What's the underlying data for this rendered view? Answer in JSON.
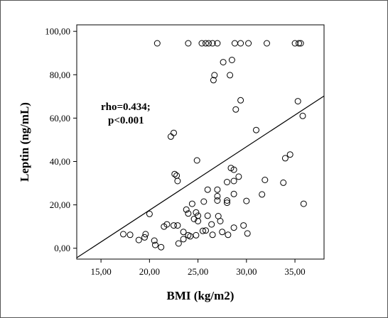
{
  "chart_data": {
    "type": "scatter",
    "title": "",
    "xlabel": "BMI (kg/m2)",
    "ylabel": "Leptin (ng/mL)",
    "xlim": [
      12.5,
      38
    ],
    "ylim": [
      -5,
      103
    ],
    "x_ticks": [
      15,
      20,
      25,
      30,
      35
    ],
    "x_tick_labels": [
      "15,00",
      "20,00",
      "25,00",
      "30,00",
      "35,00"
    ],
    "y_ticks": [
      0,
      20,
      40,
      60,
      80,
      100
    ],
    "y_tick_labels": [
      "0,00",
      "20,00",
      "40,00",
      "60,00",
      "80,00",
      "100,00"
    ],
    "grid": false,
    "annotation": [
      "rho=0.434;",
      "p<0.001"
    ],
    "fit_line": {
      "x": [
        12.5,
        38
      ],
      "y": [
        -4.4,
        70.2
      ]
    },
    "points": [
      {
        "x": 17.3,
        "y": 6.5
      },
      {
        "x": 18.0,
        "y": 6.2
      },
      {
        "x": 18.9,
        "y": 3.8
      },
      {
        "x": 19.5,
        "y": 5.0
      },
      {
        "x": 19.6,
        "y": 6.5
      },
      {
        "x": 20.0,
        "y": 15.8
      },
      {
        "x": 20.5,
        "y": 3.5
      },
      {
        "x": 20.6,
        "y": 1.5
      },
      {
        "x": 21.2,
        "y": 0.5
      },
      {
        "x": 21.5,
        "y": 10.0
      },
      {
        "x": 21.8,
        "y": 11.0
      },
      {
        "x": 22.2,
        "y": 51.5
      },
      {
        "x": 22.5,
        "y": 53.2
      },
      {
        "x": 22.5,
        "y": 10.5
      },
      {
        "x": 22.6,
        "y": 34.2
      },
      {
        "x": 22.8,
        "y": 33.5
      },
      {
        "x": 22.9,
        "y": 31.0
      },
      {
        "x": 22.9,
        "y": 10.5
      },
      {
        "x": 23.0,
        "y": 2.2
      },
      {
        "x": 23.5,
        "y": 7.5
      },
      {
        "x": 23.5,
        "y": 4.2
      },
      {
        "x": 23.8,
        "y": 17.8
      },
      {
        "x": 24.0,
        "y": 16.0
      },
      {
        "x": 24.0,
        "y": 6.0
      },
      {
        "x": 24.2,
        "y": 5.5
      },
      {
        "x": 24.4,
        "y": 20.5
      },
      {
        "x": 24.6,
        "y": 13.5
      },
      {
        "x": 24.8,
        "y": 16.5
      },
      {
        "x": 24.8,
        "y": 6.0
      },
      {
        "x": 24.9,
        "y": 40.5
      },
      {
        "x": 25.0,
        "y": 15.0
      },
      {
        "x": 25.0,
        "y": 12.5
      },
      {
        "x": 25.5,
        "y": 8.0
      },
      {
        "x": 25.6,
        "y": 21.5
      },
      {
        "x": 25.8,
        "y": 8.2
      },
      {
        "x": 26.0,
        "y": 27.0
      },
      {
        "x": 26.0,
        "y": 15.0
      },
      {
        "x": 26.4,
        "y": 11.0
      },
      {
        "x": 26.5,
        "y": 6.2
      },
      {
        "x": 26.6,
        "y": 77.5
      },
      {
        "x": 26.7,
        "y": 79.8
      },
      {
        "x": 27.0,
        "y": 27.0
      },
      {
        "x": 27.0,
        "y": 24.0
      },
      {
        "x": 27.0,
        "y": 22.0
      },
      {
        "x": 27.1,
        "y": 14.8
      },
      {
        "x": 27.3,
        "y": 12.5
      },
      {
        "x": 27.5,
        "y": 7.5
      },
      {
        "x": 27.6,
        "y": 85.8
      },
      {
        "x": 28.0,
        "y": 30.5
      },
      {
        "x": 28.0,
        "y": 22.0
      },
      {
        "x": 28.0,
        "y": 21.0
      },
      {
        "x": 28.1,
        "y": 6.2
      },
      {
        "x": 28.3,
        "y": 79.8
      },
      {
        "x": 28.4,
        "y": 37.0
      },
      {
        "x": 28.5,
        "y": 86.8
      },
      {
        "x": 28.7,
        "y": 36.2
      },
      {
        "x": 28.7,
        "y": 31.0
      },
      {
        "x": 28.7,
        "y": 25.0
      },
      {
        "x": 28.7,
        "y": 9.5
      },
      {
        "x": 28.9,
        "y": 64.0
      },
      {
        "x": 29.2,
        "y": 33.0
      },
      {
        "x": 29.4,
        "y": 68.2
      },
      {
        "x": 29.7,
        "y": 10.5
      },
      {
        "x": 30.0,
        "y": 21.8
      },
      {
        "x": 30.1,
        "y": 6.8
      },
      {
        "x": 31.0,
        "y": 54.5
      },
      {
        "x": 31.6,
        "y": 24.8
      },
      {
        "x": 31.9,
        "y": 31.5
      },
      {
        "x": 33.8,
        "y": 30.2
      },
      {
        "x": 34.0,
        "y": 41.5
      },
      {
        "x": 34.5,
        "y": 43.2
      },
      {
        "x": 35.3,
        "y": 67.8
      },
      {
        "x": 35.8,
        "y": 61.0
      },
      {
        "x": 35.9,
        "y": 20.5
      },
      {
        "x": 20.8,
        "y": 94.5
      },
      {
        "x": 24.0,
        "y": 94.5
      },
      {
        "x": 25.4,
        "y": 94.5
      },
      {
        "x": 25.8,
        "y": 94.5
      },
      {
        "x": 26.1,
        "y": 94.5
      },
      {
        "x": 26.5,
        "y": 94.5
      },
      {
        "x": 27.0,
        "y": 94.5
      },
      {
        "x": 28.8,
        "y": 94.5
      },
      {
        "x": 29.4,
        "y": 94.5
      },
      {
        "x": 30.2,
        "y": 94.5
      },
      {
        "x": 32.1,
        "y": 94.5
      },
      {
        "x": 35.0,
        "y": 94.5
      },
      {
        "x": 35.4,
        "y": 94.5
      },
      {
        "x": 35.6,
        "y": 94.5
      }
    ]
  }
}
